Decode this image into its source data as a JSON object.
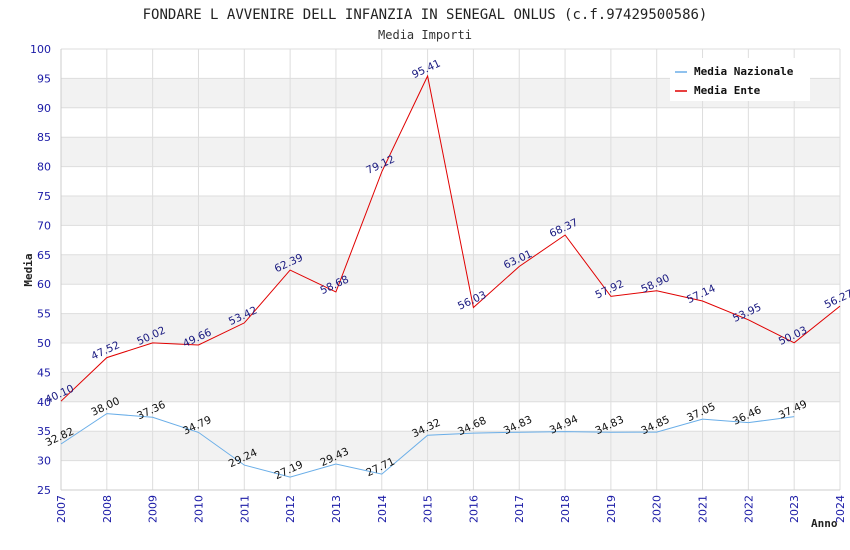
{
  "chart_data": {
    "type": "line",
    "title": "FONDARE L AVVENIRE DELL INFANZIA IN SENEGAL ONLUS (c.f.97429500586)",
    "subtitle": "Media Importi",
    "xlabel": "Anno",
    "ylabel": "Media",
    "ylim": [
      25,
      100
    ],
    "yticks": [
      "25",
      "30",
      "35",
      "40",
      "45",
      "50",
      "55",
      "60",
      "65",
      "70",
      "75",
      "80",
      "85",
      "90",
      "95",
      "100"
    ],
    "categories": [
      "2007",
      "2008",
      "2009",
      "2010",
      "2011",
      "2012",
      "2013",
      "2014",
      "2015",
      "2016",
      "2017",
      "2018",
      "2019",
      "2020",
      "2021",
      "2022",
      "2023",
      "2024"
    ],
    "legend_position": "top-right",
    "series": [
      {
        "name": "Media Nazionale",
        "color": "#6aaee8",
        "values": [
          32.82,
          38.0,
          37.36,
          34.79,
          29.24,
          27.19,
          29.43,
          27.71,
          34.32,
          34.68,
          34.83,
          34.94,
          34.83,
          34.85,
          37.05,
          36.46,
          37.49,
          null
        ],
        "labels": [
          "32.82",
          "38.00",
          "37.36",
          "34.79",
          "29.24",
          "27.19",
          "29.43",
          "27.71",
          "34.32",
          "34.68",
          "34.83",
          "34.94",
          "34.83",
          "34.85",
          "37.05",
          "36.46",
          "37.49",
          null
        ]
      },
      {
        "name": "Media Ente",
        "color": "#e00000",
        "values": [
          40.1,
          47.52,
          50.02,
          49.66,
          53.42,
          62.39,
          58.68,
          79.12,
          95.41,
          56.03,
          63.01,
          68.37,
          57.92,
          58.9,
          57.14,
          53.95,
          50.03,
          56.27
        ],
        "labels": [
          "40.10",
          "47.52",
          "50.02",
          "49.66",
          "53.42",
          "62.39",
          "58.68",
          "79.12",
          "95.41",
          "56.03",
          "63.01",
          "68.37",
          "57.92",
          "58.90",
          "57.14",
          "53.95",
          "50.03",
          "56.27"
        ]
      }
    ]
  }
}
